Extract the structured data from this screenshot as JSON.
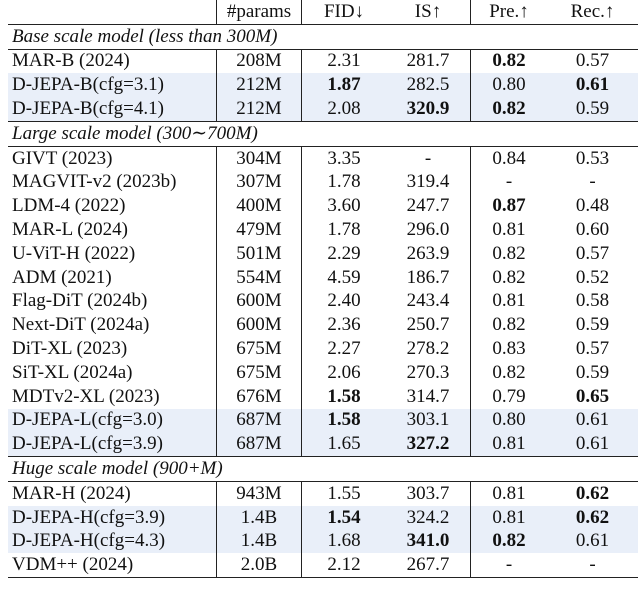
{
  "table": {
    "header": [
      "#params",
      "FID↓",
      "IS↑",
      "Pre.↑",
      "Rec.↑"
    ],
    "sections": [
      {
        "title": "Base scale model (less than 300M)",
        "rows": [
          {
            "cells": [
              "MAR-B (2024)",
              "208M",
              "2.31",
              "281.7",
              "0.82",
              "0.57"
            ],
            "bold": [
              4
            ]
          },
          {
            "cells": [
              "D-JEPA-B(cfg=3.1)",
              "212M",
              "1.87",
              "282.5",
              "0.80",
              "0.61"
            ],
            "bold": [
              2,
              5
            ],
            "highlighted": true
          },
          {
            "cells": [
              "D-JEPA-B(cfg=4.1)",
              "212M",
              "2.08",
              "320.9",
              "0.82",
              "0.59"
            ],
            "bold": [
              3,
              4
            ],
            "highlighted": true
          }
        ]
      },
      {
        "title": "Large scale model (300∼700M)",
        "rows": [
          {
            "cells": [
              "GIVT (2023)",
              "304M",
              "3.35",
              "-",
              "0.84",
              "0.53"
            ]
          },
          {
            "cells": [
              "MAGVIT-v2 (2023b)",
              "307M",
              "1.78",
              "319.4",
              "-",
              "-"
            ]
          },
          {
            "cells": [
              "LDM-4 (2022)",
              "400M",
              "3.60",
              "247.7",
              "0.87",
              "0.48"
            ],
            "bold": [
              4
            ]
          },
          {
            "cells": [
              "MAR-L (2024)",
              "479M",
              "1.78",
              "296.0",
              "0.81",
              "0.60"
            ]
          },
          {
            "cells": [
              "U-ViT-H (2022)",
              "501M",
              "2.29",
              "263.9",
              "0.82",
              "0.57"
            ]
          },
          {
            "cells": [
              "ADM (2021)",
              "554M",
              "4.59",
              "186.7",
              "0.82",
              "0.52"
            ]
          },
          {
            "cells": [
              "Flag-DiT (2024b)",
              "600M",
              "2.40",
              "243.4",
              "0.81",
              "0.58"
            ]
          },
          {
            "cells": [
              "Next-DiT (2024a)",
              "600M",
              "2.36",
              "250.7",
              "0.82",
              "0.59"
            ]
          },
          {
            "cells": [
              "DiT-XL (2023)",
              "675M",
              "2.27",
              "278.2",
              "0.83",
              "0.57"
            ]
          },
          {
            "cells": [
              "SiT-XL (2024a)",
              "675M",
              "2.06",
              "270.3",
              "0.82",
              "0.59"
            ]
          },
          {
            "cells": [
              "MDTv2-XL (2023)",
              "676M",
              "1.58",
              "314.7",
              "0.79",
              "0.65"
            ],
            "bold": [
              2,
              5
            ]
          },
          {
            "cells": [
              "D-JEPA-L(cfg=3.0)",
              "687M",
              "1.58",
              "303.1",
              "0.80",
              "0.61"
            ],
            "bold": [
              2
            ],
            "highlighted": true
          },
          {
            "cells": [
              "D-JEPA-L(cfg=3.9)",
              "687M",
              "1.65",
              "327.2",
              "0.81",
              "0.61"
            ],
            "bold": [
              3
            ],
            "highlighted": true
          }
        ]
      },
      {
        "title": "Huge scale model (900+M)",
        "rows": [
          {
            "cells": [
              "MAR-H (2024)",
              "943M",
              "1.55",
              "303.7",
              "0.81",
              "0.62"
            ],
            "bold": [
              5
            ]
          },
          {
            "cells": [
              "D-JEPA-H(cfg=3.9)",
              "1.4B",
              "1.54",
              "324.2",
              "0.81",
              "0.62"
            ],
            "bold": [
              2,
              5
            ],
            "highlighted": true
          },
          {
            "cells": [
              "D-JEPA-H(cfg=4.3)",
              "1.4B",
              "1.68",
              "341.0",
              "0.82",
              "0.61"
            ],
            "bold": [
              3,
              4
            ],
            "highlighted": true
          },
          {
            "cells": [
              "VDM++ (2024)",
              "2.0B",
              "2.12",
              "267.7",
              "-",
              "-"
            ]
          }
        ]
      }
    ]
  }
}
